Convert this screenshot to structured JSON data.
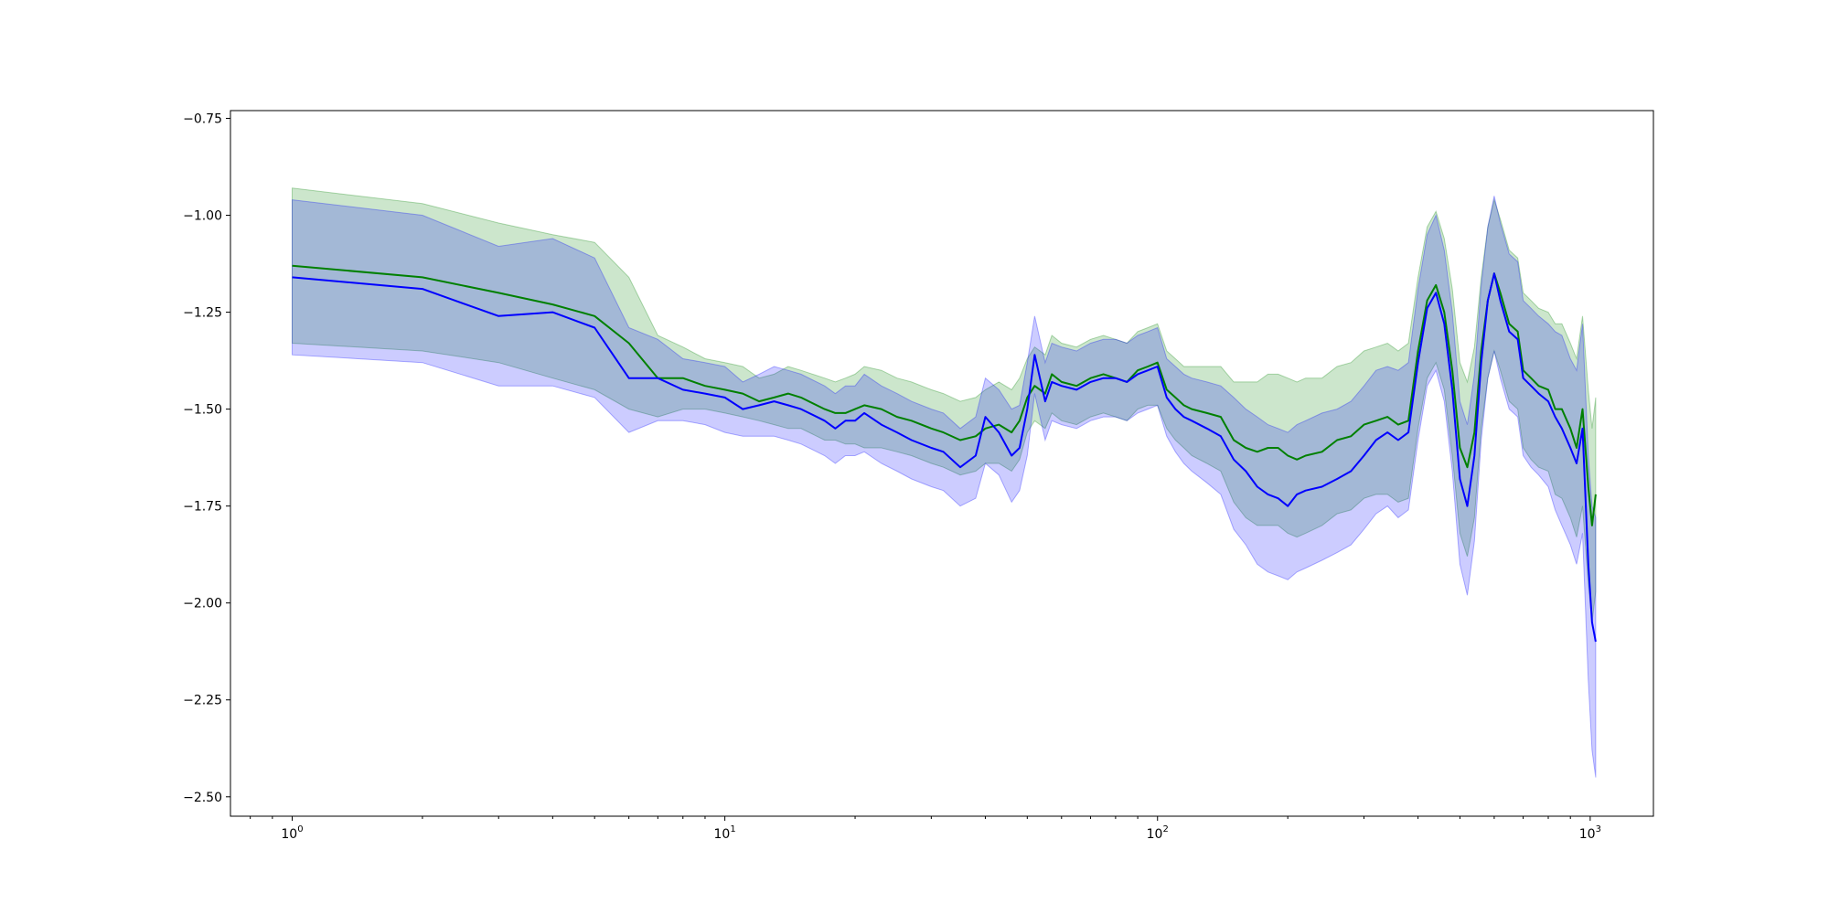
{
  "chart_data": {
    "type": "line",
    "xscale": "log",
    "xlim": [
      0.72,
      1400
    ],
    "ylim": [
      -2.55,
      -0.73
    ],
    "grid": false,
    "legend": "none",
    "xticks": [
      {
        "base": "10",
        "exp": "0",
        "value": 1
      },
      {
        "base": "10",
        "exp": "1",
        "value": 10
      },
      {
        "base": "10",
        "exp": "2",
        "value": 100
      },
      {
        "base": "10",
        "exp": "3",
        "value": 1000
      }
    ],
    "yticks": [
      {
        "label": "−0.75",
        "value": -0.75
      },
      {
        "label": "−1.00",
        "value": -1.0
      },
      {
        "label": "−1.25",
        "value": -1.25
      },
      {
        "label": "−1.50",
        "value": -1.5
      },
      {
        "label": "−1.75",
        "value": -1.75
      },
      {
        "label": "−2.00",
        "value": -2.0
      },
      {
        "label": "−2.25",
        "value": -2.25
      },
      {
        "label": "−2.50",
        "value": -2.5
      }
    ],
    "series": [
      {
        "color": "#008000",
        "band_color": "#008000",
        "band_opacity": 0.2,
        "x": [
          1,
          2,
          3,
          4,
          5,
          6,
          7,
          8,
          9,
          10,
          11,
          12,
          13,
          14,
          15,
          17,
          18,
          19,
          20,
          21,
          23,
          25,
          27,
          30,
          32,
          35,
          38,
          40,
          43,
          46,
          48,
          50,
          52,
          55,
          57,
          60,
          65,
          70,
          75,
          80,
          85,
          90,
          95,
          100,
          105,
          110,
          115,
          120,
          130,
          140,
          150,
          160,
          170,
          180,
          190,
          200,
          210,
          220,
          240,
          260,
          280,
          300,
          320,
          340,
          360,
          380,
          400,
          420,
          440,
          460,
          480,
          500,
          520,
          540,
          560,
          580,
          600,
          620,
          650,
          680,
          700,
          730,
          760,
          800,
          830,
          860,
          900,
          930,
          960,
          990,
          1010,
          1030
        ],
        "y": [
          -1.13,
          -1.16,
          -1.2,
          -1.23,
          -1.26,
          -1.33,
          -1.42,
          -1.42,
          -1.44,
          -1.45,
          -1.46,
          -1.48,
          -1.47,
          -1.46,
          -1.47,
          -1.5,
          -1.51,
          -1.51,
          -1.5,
          -1.49,
          -1.5,
          -1.52,
          -1.53,
          -1.55,
          -1.56,
          -1.58,
          -1.57,
          -1.55,
          -1.54,
          -1.56,
          -1.53,
          -1.47,
          -1.44,
          -1.46,
          -1.41,
          -1.43,
          -1.44,
          -1.42,
          -1.41,
          -1.42,
          -1.43,
          -1.4,
          -1.39,
          -1.38,
          -1.45,
          -1.47,
          -1.49,
          -1.5,
          -1.51,
          -1.52,
          -1.58,
          -1.6,
          -1.61,
          -1.6,
          -1.6,
          -1.62,
          -1.63,
          -1.62,
          -1.61,
          -1.58,
          -1.57,
          -1.54,
          -1.53,
          -1.52,
          -1.54,
          -1.53,
          -1.35,
          -1.22,
          -1.18,
          -1.25,
          -1.4,
          -1.6,
          -1.65,
          -1.56,
          -1.35,
          -1.22,
          -1.15,
          -1.2,
          -1.28,
          -1.3,
          -1.4,
          -1.42,
          -1.44,
          -1.45,
          -1.5,
          -1.5,
          -1.55,
          -1.6,
          -1.5,
          -1.7,
          -1.8,
          -1.72
        ],
        "lower": [
          -1.33,
          -1.35,
          -1.38,
          -1.42,
          -1.45,
          -1.5,
          -1.52,
          -1.5,
          -1.5,
          -1.51,
          -1.52,
          -1.53,
          -1.54,
          -1.55,
          -1.55,
          -1.58,
          -1.58,
          -1.59,
          -1.59,
          -1.6,
          -1.6,
          -1.61,
          -1.62,
          -1.64,
          -1.65,
          -1.67,
          -1.66,
          -1.64,
          -1.64,
          -1.66,
          -1.63,
          -1.56,
          -1.53,
          -1.55,
          -1.51,
          -1.53,
          -1.54,
          -1.52,
          -1.51,
          -1.52,
          -1.53,
          -1.5,
          -1.49,
          -1.49,
          -1.55,
          -1.58,
          -1.6,
          -1.62,
          -1.64,
          -1.66,
          -1.74,
          -1.78,
          -1.8,
          -1.8,
          -1.8,
          -1.82,
          -1.83,
          -1.82,
          -1.8,
          -1.77,
          -1.76,
          -1.73,
          -1.72,
          -1.72,
          -1.74,
          -1.73,
          -1.55,
          -1.42,
          -1.38,
          -1.45,
          -1.62,
          -1.82,
          -1.88,
          -1.78,
          -1.55,
          -1.42,
          -1.35,
          -1.4,
          -1.48,
          -1.5,
          -1.6,
          -1.63,
          -1.65,
          -1.66,
          -1.72,
          -1.73,
          -1.78,
          -1.83,
          -1.75,
          -1.95,
          -2.05,
          -1.97
        ],
        "upper": [
          -0.93,
          -0.97,
          -1.02,
          -1.05,
          -1.07,
          -1.16,
          -1.31,
          -1.34,
          -1.37,
          -1.38,
          -1.39,
          -1.42,
          -1.41,
          -1.39,
          -1.4,
          -1.42,
          -1.43,
          -1.42,
          -1.41,
          -1.39,
          -1.4,
          -1.42,
          -1.43,
          -1.45,
          -1.46,
          -1.48,
          -1.47,
          -1.45,
          -1.43,
          -1.45,
          -1.42,
          -1.37,
          -1.34,
          -1.36,
          -1.31,
          -1.33,
          -1.34,
          -1.32,
          -1.31,
          -1.32,
          -1.33,
          -1.3,
          -1.29,
          -1.28,
          -1.35,
          -1.37,
          -1.39,
          -1.39,
          -1.39,
          -1.39,
          -1.43,
          -1.43,
          -1.43,
          -1.41,
          -1.41,
          -1.42,
          -1.43,
          -1.42,
          -1.42,
          -1.39,
          -1.38,
          -1.35,
          -1.34,
          -1.33,
          -1.35,
          -1.33,
          -1.16,
          -1.03,
          -0.99,
          -1.06,
          -1.19,
          -1.38,
          -1.43,
          -1.34,
          -1.16,
          -1.03,
          -0.96,
          -1.01,
          -1.09,
          -1.11,
          -1.2,
          -1.22,
          -1.24,
          -1.25,
          -1.28,
          -1.28,
          -1.33,
          -1.37,
          -1.26,
          -1.45,
          -1.55,
          -1.47
        ]
      },
      {
        "color": "#0000ff",
        "band_color": "#0000ff",
        "band_opacity": 0.2,
        "x": [
          1,
          2,
          3,
          4,
          5,
          6,
          7,
          8,
          9,
          10,
          11,
          12,
          13,
          14,
          15,
          17,
          18,
          19,
          20,
          21,
          23,
          25,
          27,
          30,
          32,
          35,
          38,
          40,
          43,
          46,
          48,
          50,
          52,
          55,
          57,
          60,
          65,
          70,
          75,
          80,
          85,
          90,
          95,
          100,
          105,
          110,
          115,
          120,
          130,
          140,
          150,
          160,
          170,
          180,
          190,
          200,
          210,
          220,
          240,
          260,
          280,
          300,
          320,
          340,
          360,
          380,
          400,
          420,
          440,
          460,
          480,
          500,
          520,
          540,
          560,
          580,
          600,
          620,
          650,
          680,
          700,
          730,
          760,
          800,
          830,
          860,
          900,
          930,
          960,
          990,
          1010,
          1030
        ],
        "y": [
          -1.16,
          -1.19,
          -1.26,
          -1.25,
          -1.29,
          -1.42,
          -1.42,
          -1.45,
          -1.46,
          -1.47,
          -1.5,
          -1.49,
          -1.48,
          -1.49,
          -1.5,
          -1.53,
          -1.55,
          -1.53,
          -1.53,
          -1.51,
          -1.54,
          -1.56,
          -1.58,
          -1.6,
          -1.61,
          -1.65,
          -1.62,
          -1.52,
          -1.56,
          -1.62,
          -1.6,
          -1.5,
          -1.36,
          -1.48,
          -1.43,
          -1.44,
          -1.45,
          -1.43,
          -1.42,
          -1.42,
          -1.43,
          -1.41,
          -1.4,
          -1.39,
          -1.47,
          -1.5,
          -1.52,
          -1.53,
          -1.55,
          -1.57,
          -1.63,
          -1.66,
          -1.7,
          -1.72,
          -1.73,
          -1.75,
          -1.72,
          -1.71,
          -1.7,
          -1.68,
          -1.66,
          -1.62,
          -1.58,
          -1.56,
          -1.58,
          -1.56,
          -1.38,
          -1.24,
          -1.2,
          -1.28,
          -1.45,
          -1.68,
          -1.75,
          -1.62,
          -1.38,
          -1.22,
          -1.15,
          -1.22,
          -1.3,
          -1.32,
          -1.42,
          -1.44,
          -1.46,
          -1.48,
          -1.52,
          -1.55,
          -1.6,
          -1.64,
          -1.55,
          -1.9,
          -2.05,
          -2.1
        ],
        "lower": [
          -1.36,
          -1.38,
          -1.44,
          -1.44,
          -1.47,
          -1.56,
          -1.53,
          -1.53,
          -1.54,
          -1.56,
          -1.57,
          -1.57,
          -1.57,
          -1.58,
          -1.59,
          -1.62,
          -1.64,
          -1.62,
          -1.62,
          -1.61,
          -1.64,
          -1.66,
          -1.68,
          -1.7,
          -1.71,
          -1.75,
          -1.73,
          -1.64,
          -1.67,
          -1.74,
          -1.71,
          -1.62,
          -1.46,
          -1.58,
          -1.53,
          -1.54,
          -1.55,
          -1.53,
          -1.52,
          -1.52,
          -1.53,
          -1.51,
          -1.5,
          -1.49,
          -1.57,
          -1.61,
          -1.64,
          -1.66,
          -1.69,
          -1.72,
          -1.81,
          -1.85,
          -1.9,
          -1.92,
          -1.93,
          -1.94,
          -1.92,
          -1.91,
          -1.89,
          -1.87,
          -1.85,
          -1.81,
          -1.77,
          -1.75,
          -1.78,
          -1.76,
          -1.58,
          -1.44,
          -1.4,
          -1.48,
          -1.66,
          -1.9,
          -1.98,
          -1.84,
          -1.58,
          -1.42,
          -1.35,
          -1.42,
          -1.5,
          -1.52,
          -1.62,
          -1.65,
          -1.67,
          -1.7,
          -1.76,
          -1.8,
          -1.85,
          -1.9,
          -1.82,
          -2.2,
          -2.38,
          -2.45
        ],
        "upper": [
          -0.96,
          -1.0,
          -1.08,
          -1.06,
          -1.11,
          -1.29,
          -1.32,
          -1.37,
          -1.38,
          -1.39,
          -1.43,
          -1.41,
          -1.39,
          -1.4,
          -1.41,
          -1.44,
          -1.46,
          -1.44,
          -1.44,
          -1.41,
          -1.44,
          -1.46,
          -1.48,
          -1.5,
          -1.51,
          -1.55,
          -1.52,
          -1.42,
          -1.45,
          -1.5,
          -1.49,
          -1.38,
          -1.26,
          -1.38,
          -1.33,
          -1.34,
          -1.35,
          -1.33,
          -1.32,
          -1.32,
          -1.33,
          -1.31,
          -1.3,
          -1.29,
          -1.37,
          -1.39,
          -1.41,
          -1.42,
          -1.43,
          -1.44,
          -1.47,
          -1.5,
          -1.52,
          -1.54,
          -1.55,
          -1.56,
          -1.54,
          -1.53,
          -1.51,
          -1.5,
          -1.48,
          -1.44,
          -1.4,
          -1.39,
          -1.4,
          -1.38,
          -1.19,
          -1.05,
          -1.0,
          -1.09,
          -1.25,
          -1.48,
          -1.54,
          -1.41,
          -1.18,
          -1.03,
          -0.95,
          -1.02,
          -1.1,
          -1.12,
          -1.22,
          -1.24,
          -1.26,
          -1.28,
          -1.3,
          -1.31,
          -1.37,
          -1.4,
          -1.28,
          -1.62,
          -1.75,
          -1.78
        ]
      }
    ]
  }
}
